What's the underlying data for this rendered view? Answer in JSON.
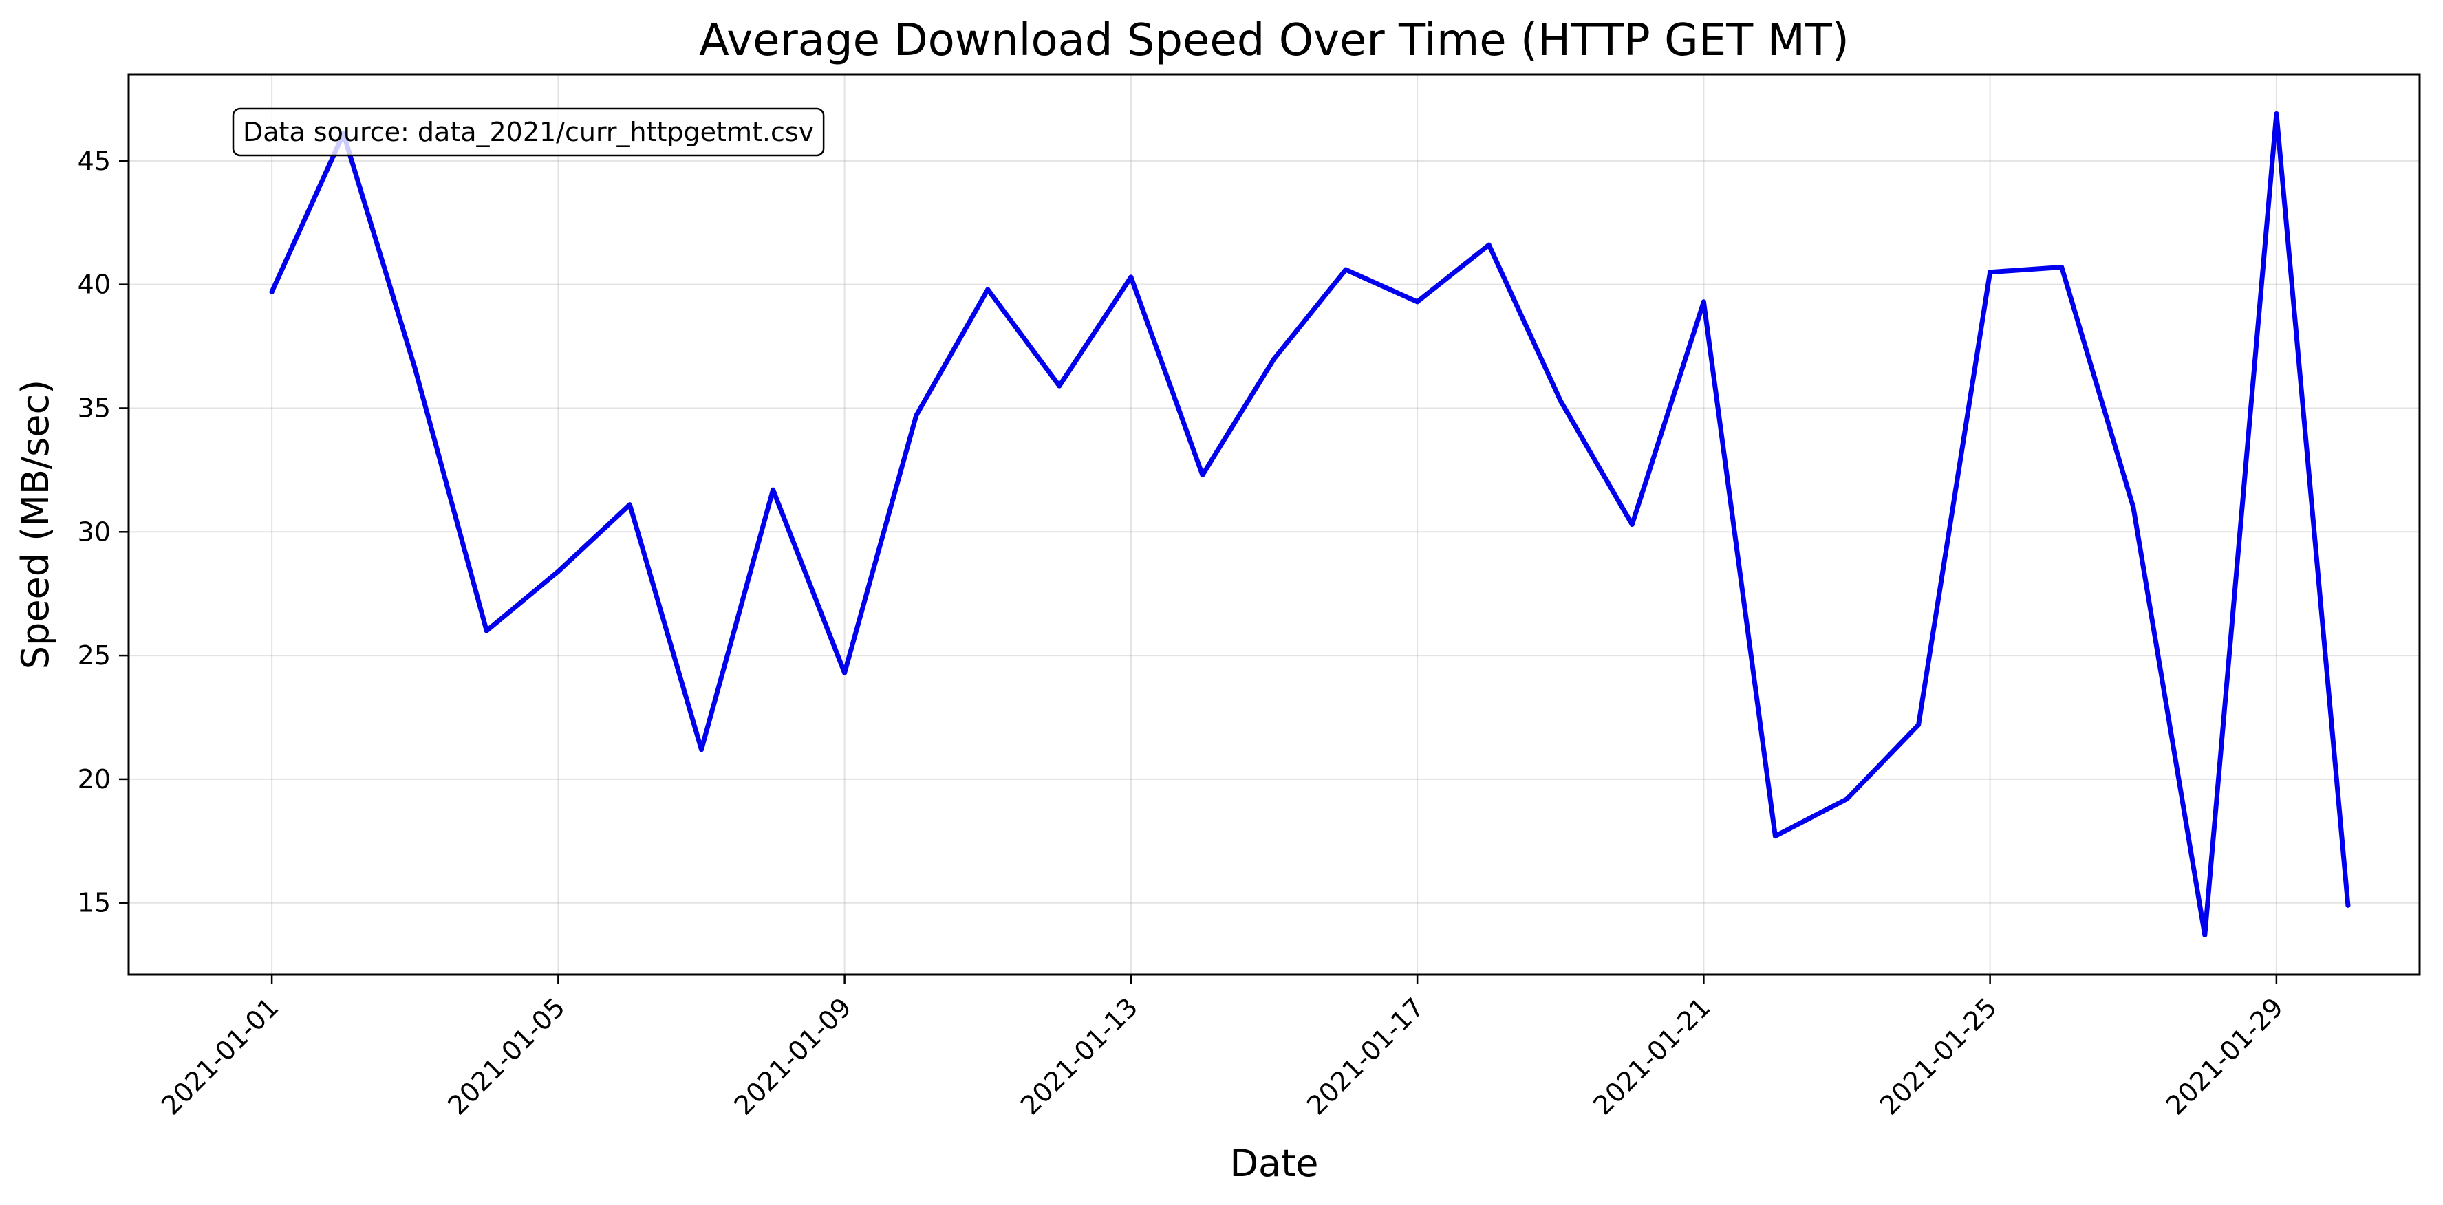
{
  "chart_data": {
    "type": "line",
    "title": "Average Download Speed Over Time (HTTP GET MT)",
    "xlabel": "Date",
    "ylabel": "Speed (MB/sec)",
    "x": [
      "2021-01-01",
      "2021-01-02",
      "2021-01-03",
      "2021-01-04",
      "2021-01-05",
      "2021-01-06",
      "2021-01-07",
      "2021-01-08",
      "2021-01-09",
      "2021-01-10",
      "2021-01-11",
      "2021-01-12",
      "2021-01-13",
      "2021-01-14",
      "2021-01-15",
      "2021-01-16",
      "2021-01-17",
      "2021-01-18",
      "2021-01-19",
      "2021-01-20",
      "2021-01-21",
      "2021-01-22",
      "2021-01-23",
      "2021-01-24",
      "2021-01-25",
      "2021-01-26",
      "2021-01-27",
      "2021-01-28",
      "2021-01-29",
      "2021-01-30"
    ],
    "series": [
      {
        "color": "#0000ee",
        "values": [
          39.7,
          46.1,
          36.6,
          26.0,
          28.4,
          31.1,
          21.2,
          31.7,
          24.3,
          34.7,
          39.8,
          35.9,
          40.3,
          32.3,
          37.0,
          40.6,
          39.3,
          41.6,
          35.3,
          30.3,
          39.3,
          17.7,
          19.2,
          22.2,
          40.5,
          40.7,
          31.0,
          13.7,
          46.9,
          14.9
        ]
      }
    ],
    "xlim": [
      "2020-12-30",
      "2021-01-31"
    ],
    "ylim": [
      12.1,
      48.5
    ],
    "x_ticks": [
      "2021-01-01",
      "2021-01-05",
      "2021-01-09",
      "2021-01-13",
      "2021-01-17",
      "2021-01-21",
      "2021-01-25",
      "2021-01-29"
    ],
    "y_ticks": [
      15,
      20,
      25,
      30,
      35,
      40,
      45
    ],
    "x_tick_rotation": 45,
    "grid": true,
    "legend": "none",
    "annotation": "Data source: data_2021/curr_httpgetmt.csv"
  }
}
